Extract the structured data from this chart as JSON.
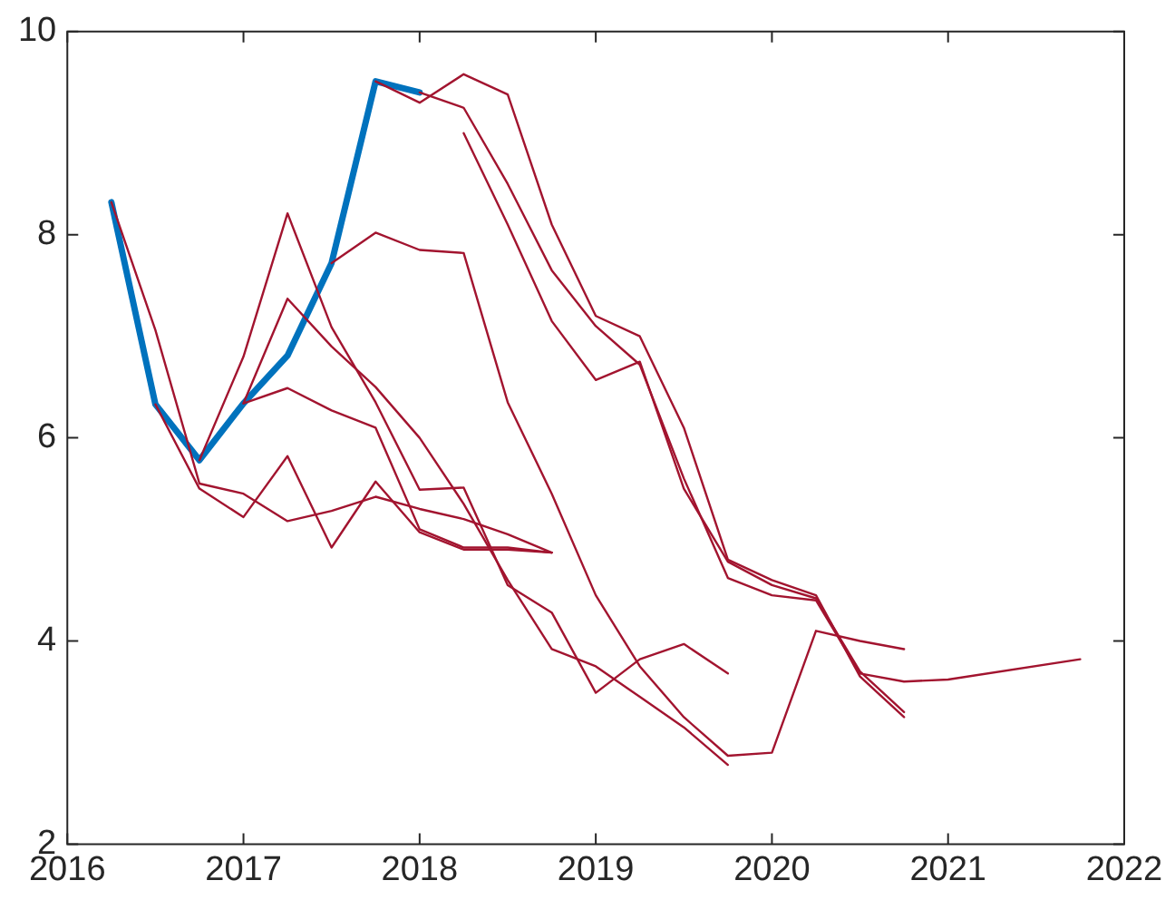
{
  "chart_data": {
    "type": "line",
    "xlim": [
      2016,
      2022
    ],
    "xticks": [
      2016,
      2017,
      2018,
      2019,
      2020,
      2021,
      2022
    ],
    "ylim": [
      2,
      10
    ],
    "yticks": [
      2,
      4,
      6,
      8,
      10
    ],
    "grid": false,
    "legend": false,
    "marker": "none",
    "line_style": "solid",
    "series": [
      {
        "color": "#a2142f",
        "x": [
          2016.25,
          2016.5,
          2016.75,
          2017,
          2017.25,
          2017.5,
          2017.75,
          2018,
          2018.25,
          2018.5,
          2018.75
        ],
        "values": [
          8.32,
          7.06,
          5.55,
          5.45,
          5.18,
          5.28,
          5.42,
          5.3,
          5.2,
          5.05,
          4.87
        ]
      },
      {
        "color": "#a2142f",
        "x": [
          2016.5,
          2016.75,
          2017,
          2017.25,
          2017.5,
          2017.75,
          2018,
          2018.25,
          2018.5,
          2018.75
        ],
        "values": [
          6.33,
          5.5,
          5.22,
          5.82,
          4.92,
          5.57,
          5.07,
          4.9,
          4.9,
          4.87
        ]
      },
      {
        "color": "#a2142f",
        "x": [
          2016.75,
          2017,
          2017.25,
          2017.5,
          2017.75,
          2018,
          2018.25,
          2018.5,
          2018.75,
          2019,
          2019.25,
          2019.5,
          2019.75
        ],
        "values": [
          5.78,
          6.8,
          8.21,
          7.09,
          6.35,
          5.49,
          5.51,
          4.55,
          4.28,
          3.49,
          3.82,
          3.97,
          3.68
        ]
      },
      {
        "color": "#a2142f",
        "x": [
          2017,
          2017.25,
          2017.5,
          2017.75,
          2018,
          2018.25,
          2018.5,
          2018.75,
          2019,
          2019.25,
          2019.5,
          2019.75
        ],
        "values": [
          6.34,
          7.37,
          6.9,
          6.5,
          6.0,
          5.35,
          4.6,
          3.92,
          3.75,
          3.45,
          3.15,
          2.78
        ]
      },
      {
        "color": "#a2142f",
        "x": [
          2017,
          2017.25,
          2017.5,
          2017.75,
          2018,
          2018.25,
          2018.5,
          2018.75
        ],
        "values": [
          6.34,
          6.49,
          6.27,
          6.1,
          5.1,
          4.92,
          4.92,
          4.87
        ]
      },
      {
        "color": "#a2142f",
        "x": [
          2017.5,
          2017.75,
          2018,
          2018.25,
          2018.5,
          2018.75,
          2019,
          2019.25,
          2019.5,
          2019.75,
          2020,
          2020.25,
          2020.5,
          2020.75
        ],
        "values": [
          7.72,
          8.02,
          7.85,
          7.82,
          6.35,
          5.45,
          4.45,
          3.75,
          3.25,
          2.87,
          2.9,
          4.1,
          4.0,
          3.92
        ]
      },
      {
        "color": "#a2142f",
        "x": [
          2017.75,
          2018,
          2018.25,
          2018.5,
          2018.75,
          2019,
          2019.25,
          2019.5,
          2019.75,
          2020,
          2020.25,
          2020.5,
          2020.75
        ],
        "values": [
          9.51,
          9.3,
          9.58,
          9.38,
          8.1,
          7.2,
          7.0,
          6.1,
          4.8,
          4.6,
          4.45,
          3.65,
          3.25
        ]
      },
      {
        "color": "#a2142f",
        "x": [
          2018,
          2018.25,
          2018.5,
          2018.75,
          2019,
          2019.25,
          2019.5,
          2019.75,
          2020,
          2020.25,
          2020.5,
          2020.75,
          2021,
          2021.75
        ],
        "values": [
          9.4,
          9.25,
          8.5,
          7.65,
          7.1,
          6.72,
          5.6,
          4.62,
          4.45,
          4.4,
          3.68,
          3.6,
          3.62,
          3.82
        ]
      },
      {
        "color": "#a2142f",
        "x": [
          2018.25,
          2018.5,
          2018.75,
          2019,
          2019.25,
          2019.5,
          2019.75,
          2020,
          2020.25,
          2020.5,
          2020.75
        ],
        "values": [
          9.0,
          8.1,
          7.15,
          6.57,
          6.75,
          5.5,
          4.78,
          4.55,
          4.42,
          3.7,
          3.3
        ]
      },
      {
        "color": "#0072bd",
        "x": [
          2016.25,
          2016.5,
          2016.75,
          2017,
          2017.25,
          2017.5,
          2017.75,
          2018
        ],
        "values": [
          8.32,
          6.33,
          5.78,
          6.34,
          6.81,
          7.72,
          9.51,
          9.4
        ]
      }
    ]
  }
}
